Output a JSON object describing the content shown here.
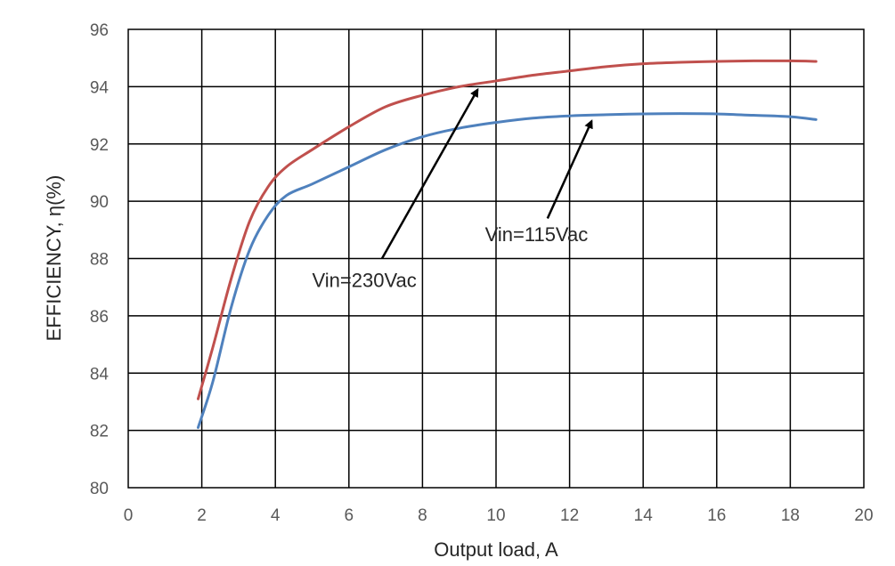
{
  "chart_data": {
    "type": "line",
    "title": "",
    "xlabel": "Output load, A",
    "ylabel": "EFFICIENCY, η(%)",
    "xlim": [
      0,
      20
    ],
    "ylim": [
      80,
      96
    ],
    "xticks": [
      0,
      2,
      4,
      6,
      8,
      10,
      12,
      14,
      16,
      18,
      20
    ],
    "yticks": [
      80,
      82,
      84,
      86,
      88,
      90,
      92,
      94,
      96
    ],
    "grid": true,
    "legend": "none",
    "series": [
      {
        "name": "Vin=230Vac",
        "color": "#c0504d",
        "x": [
          1.9,
          2.3,
          2.8,
          3.3,
          3.8,
          4.3,
          5.0,
          6.0,
          7.0,
          8.0,
          9.0,
          10.0,
          11.0,
          12.0,
          13.0,
          14.0,
          15.0,
          16.0,
          17.0,
          18.0,
          18.7
        ],
        "y": [
          83.1,
          84.9,
          87.3,
          89.3,
          90.5,
          91.2,
          91.8,
          92.6,
          93.3,
          93.7,
          94.0,
          94.2,
          94.4,
          94.55,
          94.7,
          94.8,
          94.85,
          94.88,
          94.9,
          94.9,
          94.88
        ]
      },
      {
        "name": "Vin=115Vac",
        "color": "#4f81bd",
        "x": [
          1.9,
          2.3,
          2.8,
          3.3,
          3.8,
          4.3,
          5.0,
          6.0,
          7.0,
          8.0,
          9.0,
          10.0,
          11.0,
          12.0,
          13.0,
          14.0,
          15.0,
          16.0,
          17.0,
          18.0,
          18.7
        ],
        "y": [
          82.1,
          83.7,
          86.3,
          88.3,
          89.5,
          90.2,
          90.6,
          91.2,
          91.8,
          92.25,
          92.55,
          92.75,
          92.9,
          92.98,
          93.02,
          93.05,
          93.06,
          93.05,
          93.0,
          92.95,
          92.85
        ]
      }
    ],
    "annotations": [
      {
        "text": "Vin=230Vac",
        "series": "Vin=230Vac",
        "label_at": [
          5.0,
          87.0
        ],
        "arrow_from": [
          6.9,
          88.0
        ],
        "arrow_to": [
          9.5,
          93.9
        ]
      },
      {
        "text": "Vin=115Vac",
        "series": "Vin=115Vac",
        "label_at": [
          9.7,
          88.6
        ],
        "arrow_from": [
          11.4,
          89.4
        ],
        "arrow_to": [
          12.6,
          92.8
        ]
      }
    ]
  }
}
